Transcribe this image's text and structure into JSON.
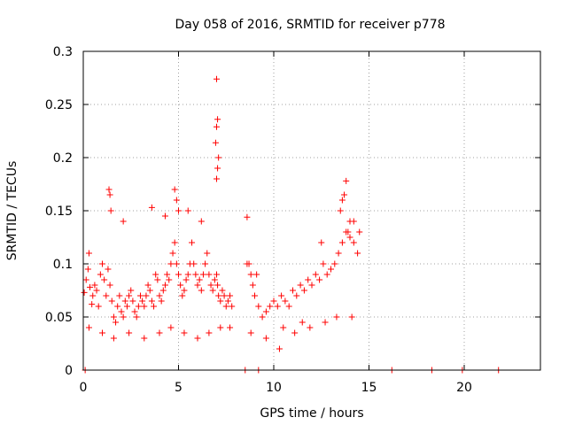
{
  "chart_data": {
    "type": "scatter",
    "title": "Day 058 of 2016, SRMTID for receiver p778",
    "xlabel": "GPS time / hours",
    "ylabel": "SRMTID / TECUs",
    "xlim": [
      0,
      24
    ],
    "ylim": [
      0,
      0.3
    ],
    "x_ticks": [
      0,
      5,
      10,
      15,
      20
    ],
    "x_tick_labels": [
      "0",
      "5",
      "10",
      "15",
      "20"
    ],
    "y_ticks": [
      0,
      0.05,
      0.1,
      0.15,
      0.2,
      0.25,
      0.3
    ],
    "y_tick_labels": [
      "0",
      "0.05",
      "0.1",
      "0.15",
      "0.2",
      "0.25",
      "0.3"
    ],
    "grid": true,
    "marker": "plus",
    "color": "#ff0000",
    "series": [
      {
        "name": "SRMTID",
        "x": [
          0.05,
          0.15,
          0.25,
          0.3,
          0.35,
          0.45,
          0.5,
          0.6,
          0.7,
          0.8,
          0.9,
          1.0,
          1.1,
          1.2,
          1.3,
          1.4,
          1.5,
          1.6,
          1.7,
          1.8,
          1.9,
          2.0,
          2.1,
          2.2,
          2.3,
          2.4,
          2.5,
          2.6,
          2.7,
          2.8,
          2.9,
          3.0,
          3.1,
          3.2,
          3.3,
          3.4,
          3.5,
          3.6,
          3.7,
          3.8,
          3.9,
          4.0,
          4.1,
          4.2,
          4.3,
          4.4,
          4.5,
          4.6,
          4.7,
          4.8,
          4.9,
          5.0,
          5.1,
          5.2,
          5.3,
          5.4,
          5.5,
          5.6,
          5.7,
          5.8,
          5.9,
          6.0,
          6.1,
          6.2,
          6.3,
          6.4,
          6.5,
          6.6,
          6.7,
          6.8,
          6.9,
          7.0,
          7.05,
          7.1,
          7.2,
          7.3,
          7.4,
          7.5,
          7.6,
          7.7,
          7.8,
          1.35,
          1.4,
          1.45,
          4.8,
          4.9,
          5.0,
          7.0,
          7.05,
          7.1,
          6.95,
          7.0,
          7.05,
          7.0,
          2.1,
          3.6,
          4.3,
          5.5,
          6.2,
          8.6,
          8.7,
          8.8,
          8.9,
          9.0,
          9.2,
          9.4,
          9.6,
          9.8,
          10.0,
          10.2,
          10.4,
          10.6,
          10.8,
          11.0,
          11.2,
          11.4,
          11.6,
          11.8,
          12.0,
          12.2,
          12.4,
          12.6,
          12.8,
          13.0,
          13.2,
          13.4,
          13.6,
          13.8,
          14.0,
          14.2,
          14.4,
          14.5,
          13.5,
          13.6,
          13.7,
          13.8,
          14.0,
          14.2,
          8.6,
          9.1,
          10.5,
          11.5,
          12.5,
          13.9,
          0.3,
          1.0,
          1.6,
          2.4,
          3.2,
          4.0,
          4.6,
          5.3,
          6.0,
          6.6,
          7.2,
          7.7,
          8.8,
          9.6,
          10.3,
          11.1,
          11.9,
          12.7,
          13.3,
          14.1,
          0.1,
          8.5,
          9.2,
          16.2,
          18.3,
          19.9,
          21.8
        ],
        "y": [
          0.073,
          0.085,
          0.095,
          0.11,
          0.078,
          0.062,
          0.07,
          0.08,
          0.075,
          0.06,
          0.09,
          0.1,
          0.085,
          0.07,
          0.095,
          0.08,
          0.065,
          0.05,
          0.045,
          0.06,
          0.07,
          0.055,
          0.05,
          0.065,
          0.06,
          0.07,
          0.075,
          0.065,
          0.055,
          0.05,
          0.06,
          0.07,
          0.065,
          0.06,
          0.07,
          0.08,
          0.075,
          0.065,
          0.06,
          0.09,
          0.085,
          0.07,
          0.065,
          0.075,
          0.08,
          0.09,
          0.085,
          0.1,
          0.11,
          0.12,
          0.1,
          0.09,
          0.08,
          0.07,
          0.075,
          0.085,
          0.09,
          0.1,
          0.12,
          0.1,
          0.09,
          0.08,
          0.085,
          0.075,
          0.09,
          0.1,
          0.11,
          0.09,
          0.08,
          0.075,
          0.085,
          0.09,
          0.08,
          0.07,
          0.065,
          0.075,
          0.07,
          0.06,
          0.065,
          0.07,
          0.06,
          0.17,
          0.165,
          0.15,
          0.17,
          0.16,
          0.15,
          0.18,
          0.19,
          0.2,
          0.214,
          0.229,
          0.236,
          0.274,
          0.14,
          0.153,
          0.145,
          0.15,
          0.14,
          0.144,
          0.1,
          0.09,
          0.08,
          0.07,
          0.06,
          0.05,
          0.055,
          0.06,
          0.065,
          0.06,
          0.07,
          0.065,
          0.06,
          0.075,
          0.07,
          0.08,
          0.075,
          0.085,
          0.08,
          0.09,
          0.085,
          0.1,
          0.09,
          0.095,
          0.1,
          0.11,
          0.12,
          0.13,
          0.125,
          0.12,
          0.11,
          0.13,
          0.15,
          0.16,
          0.165,
          0.178,
          0.14,
          0.14,
          0.1,
          0.09,
          0.04,
          0.045,
          0.12,
          0.13,
          0.04,
          0.035,
          0.03,
          0.035,
          0.03,
          0.035,
          0.04,
          0.035,
          0.03,
          0.035,
          0.04,
          0.04,
          0.035,
          0.03,
          0.02,
          0.035,
          0.04,
          0.045,
          0.05,
          0.05,
          0,
          0,
          0,
          0,
          0,
          0,
          0
        ]
      }
    ]
  }
}
